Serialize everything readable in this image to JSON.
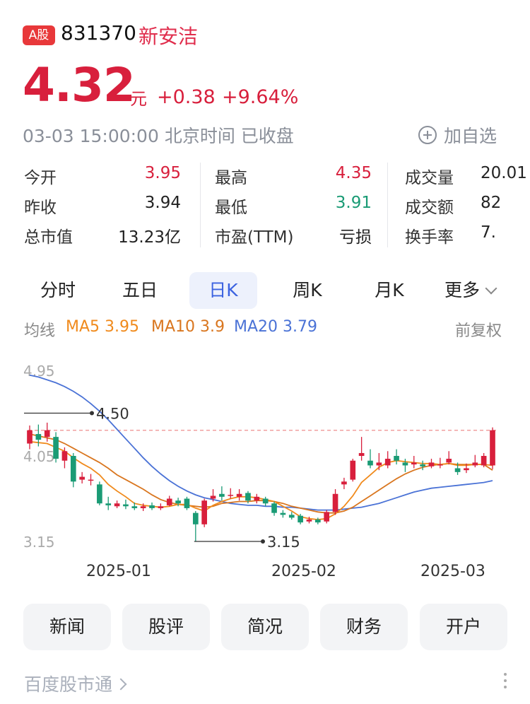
{
  "header": {
    "badge": "A股",
    "code": "831370",
    "name": "新安洁",
    "price": "4.32",
    "price_unit": "元",
    "change": "+0.38",
    "change_pct": "+9.64%",
    "timestamp": "03-03 15:00:00 北京时间 已收盘",
    "add_watch": "加自选"
  },
  "quote": [
    {
      "label": "今开",
      "value": "3.95",
      "color": "red"
    },
    {
      "label": "昨收",
      "value": "3.94",
      "color": "dark"
    },
    {
      "label": "总市值",
      "value": "13.23亿",
      "color": "dark"
    },
    {
      "label": "最高",
      "value": "4.35",
      "color": "red"
    },
    {
      "label": "最低",
      "value": "3.91",
      "color": "green"
    },
    {
      "label": "市盈(TTM)",
      "value": "亏损",
      "color": "dark"
    },
    {
      "label": "成交量",
      "value": "20.01",
      "color": "dark"
    },
    {
      "label": "成交额",
      "value": "82",
      "color": "dark"
    },
    {
      "label": "换手率",
      "value": "7.",
      "color": "dark"
    }
  ],
  "tabs": [
    "分时",
    "五日",
    "日K",
    "周K",
    "月K",
    "更多"
  ],
  "active_tab": "日K",
  "ma_line": {
    "label": "均线",
    "ma5": "MA5 3.95",
    "ma10": "MA10 3.9",
    "ma20": "MA20 3.79",
    "adjust": "前复权"
  },
  "chart_data": {
    "type": "candlestick",
    "y_ticks": [
      "4.95",
      "4.05",
      "3.15"
    ],
    "ylim": [
      3.15,
      4.95
    ],
    "x_labels": [
      "2025-01",
      "2025-02",
      "2025-03"
    ],
    "annotations": [
      {
        "text": "4.50",
        "value": 4.5
      },
      {
        "text": "3.15",
        "value": 3.15
      }
    ],
    "last_close_line": 4.32,
    "candles": [
      [
        4.18,
        4.32,
        4.37,
        4.12
      ],
      [
        4.28,
        4.22,
        4.38,
        4.15
      ],
      [
        4.25,
        4.32,
        4.4,
        4.2
      ],
      [
        4.25,
        4.02,
        4.3,
        3.98
      ],
      [
        4.0,
        4.1,
        4.14,
        3.92
      ],
      [
        4.05,
        3.78,
        4.08,
        3.72
      ],
      [
        3.8,
        3.83,
        3.88,
        3.76
      ],
      [
        3.8,
        3.8,
        3.86,
        3.74
      ],
      [
        3.75,
        3.55,
        3.78,
        3.53
      ],
      [
        3.55,
        3.53,
        3.62,
        3.48
      ],
      [
        3.52,
        3.55,
        3.58,
        3.5
      ],
      [
        3.54,
        3.52,
        3.59,
        3.49
      ],
      [
        3.52,
        3.5,
        3.56,
        3.48
      ],
      [
        3.5,
        3.52,
        3.55,
        3.47
      ],
      [
        3.53,
        3.5,
        3.56,
        3.48
      ],
      [
        3.5,
        3.52,
        3.55,
        3.48
      ],
      [
        3.53,
        3.6,
        3.63,
        3.52
      ],
      [
        3.58,
        3.55,
        3.61,
        3.52
      ],
      [
        3.6,
        3.5,
        3.62,
        3.48
      ],
      [
        3.45,
        3.33,
        3.47,
        3.15
      ],
      [
        3.33,
        3.58,
        3.6,
        3.3
      ],
      [
        3.6,
        3.63,
        3.7,
        3.57
      ],
      [
        3.65,
        3.62,
        3.73,
        3.58
      ],
      [
        3.64,
        3.64,
        3.71,
        3.6
      ],
      [
        3.62,
        3.65,
        3.7,
        3.58
      ],
      [
        3.66,
        3.58,
        3.68,
        3.55
      ],
      [
        3.58,
        3.62,
        3.65,
        3.55
      ],
      [
        3.6,
        3.55,
        3.62,
        3.52
      ],
      [
        3.55,
        3.45,
        3.57,
        3.42
      ],
      [
        3.45,
        3.43,
        3.48,
        3.4
      ],
      [
        3.43,
        3.4,
        3.46,
        3.38
      ],
      [
        3.42,
        3.35,
        3.44,
        3.33
      ],
      [
        3.36,
        3.38,
        3.41,
        3.34
      ],
      [
        3.38,
        3.35,
        3.4,
        3.33
      ],
      [
        3.36,
        3.46,
        3.48,
        3.34
      ],
      [
        3.46,
        3.65,
        3.7,
        3.43
      ],
      [
        3.75,
        3.78,
        3.82,
        3.7
      ],
      [
        3.8,
        4.0,
        4.02,
        3.78
      ],
      [
        4.05,
        4.08,
        4.25,
        4.0
      ],
      [
        4.0,
        3.95,
        4.12,
        3.92
      ],
      [
        3.95,
        3.98,
        4.08,
        3.9
      ],
      [
        3.95,
        4.02,
        4.1,
        3.92
      ],
      [
        4.05,
        4.0,
        4.12,
        3.96
      ],
      [
        3.98,
        3.95,
        4.02,
        3.88
      ],
      [
        3.96,
        3.98,
        4.05,
        3.92
      ],
      [
        3.96,
        3.94,
        4.0,
        3.9
      ],
      [
        3.94,
        3.98,
        4.02,
        3.92
      ],
      [
        3.95,
        3.96,
        4.03,
        3.92
      ],
      [
        3.98,
        4.02,
        4.1,
        3.96
      ],
      [
        3.92,
        3.88,
        3.98,
        3.85
      ],
      [
        3.9,
        3.92,
        3.97,
        3.87
      ],
      [
        3.95,
        3.98,
        4.06,
        3.93
      ],
      [
        3.95,
        4.05,
        4.08,
        3.93
      ],
      [
        3.95,
        4.32,
        4.35,
        3.91
      ]
    ],
    "ma5": [
      4.2,
      4.19,
      4.18,
      4.14,
      4.1,
      4.03,
      3.97,
      3.92,
      3.85,
      3.75,
      3.68,
      3.62,
      3.55,
      3.53,
      3.52,
      3.51,
      3.52,
      3.54,
      3.54,
      3.5,
      3.47,
      3.53,
      3.57,
      3.6,
      3.62,
      3.62,
      3.61,
      3.59,
      3.57,
      3.52,
      3.47,
      3.41,
      3.39,
      3.38,
      3.39,
      3.44,
      3.52,
      3.63,
      3.77,
      3.85,
      3.93,
      3.98,
      4.0,
      3.99,
      3.98,
      3.97,
      3.97,
      3.96,
      3.97,
      3.95,
      3.95,
      3.96,
      3.96,
      3.95
    ],
    "ma10": [
      4.28,
      4.26,
      4.24,
      4.22,
      4.18,
      4.13,
      4.08,
      4.03,
      3.98,
      3.92,
      3.85,
      3.8,
      3.75,
      3.7,
      3.64,
      3.59,
      3.56,
      3.54,
      3.53,
      3.52,
      3.51,
      3.52,
      3.55,
      3.56,
      3.57,
      3.57,
      3.58,
      3.58,
      3.57,
      3.55,
      3.52,
      3.5,
      3.48,
      3.46,
      3.45,
      3.45,
      3.47,
      3.51,
      3.57,
      3.63,
      3.69,
      3.75,
      3.81,
      3.86,
      3.9,
      3.93,
      3.95,
      3.96,
      3.97,
      3.96,
      3.96,
      3.96,
      3.96,
      3.9
    ],
    "ma20": [
      4.9,
      4.88,
      4.85,
      4.82,
      4.78,
      4.73,
      4.67,
      4.6,
      4.52,
      4.43,
      4.33,
      4.23,
      4.13,
      4.03,
      3.94,
      3.86,
      3.79,
      3.73,
      3.68,
      3.64,
      3.61,
      3.59,
      3.57,
      3.55,
      3.54,
      3.53,
      3.53,
      3.52,
      3.52,
      3.51,
      3.51,
      3.5,
      3.49,
      3.48,
      3.48,
      3.48,
      3.49,
      3.5,
      3.51,
      3.53,
      3.55,
      3.58,
      3.61,
      3.64,
      3.67,
      3.69,
      3.71,
      3.72,
      3.73,
      3.74,
      3.75,
      3.76,
      3.77,
      3.79
    ]
  },
  "actions": [
    "新闻",
    "股评",
    "简况",
    "财务",
    "开户"
  ],
  "footer": "百度股市通",
  "colors": {
    "up": "#d81f3c",
    "down": "#1a9b75",
    "ma5": "#f08a1c",
    "ma10": "#d9761f",
    "ma20": "#4a72d6",
    "accent": "#3b62e0"
  }
}
